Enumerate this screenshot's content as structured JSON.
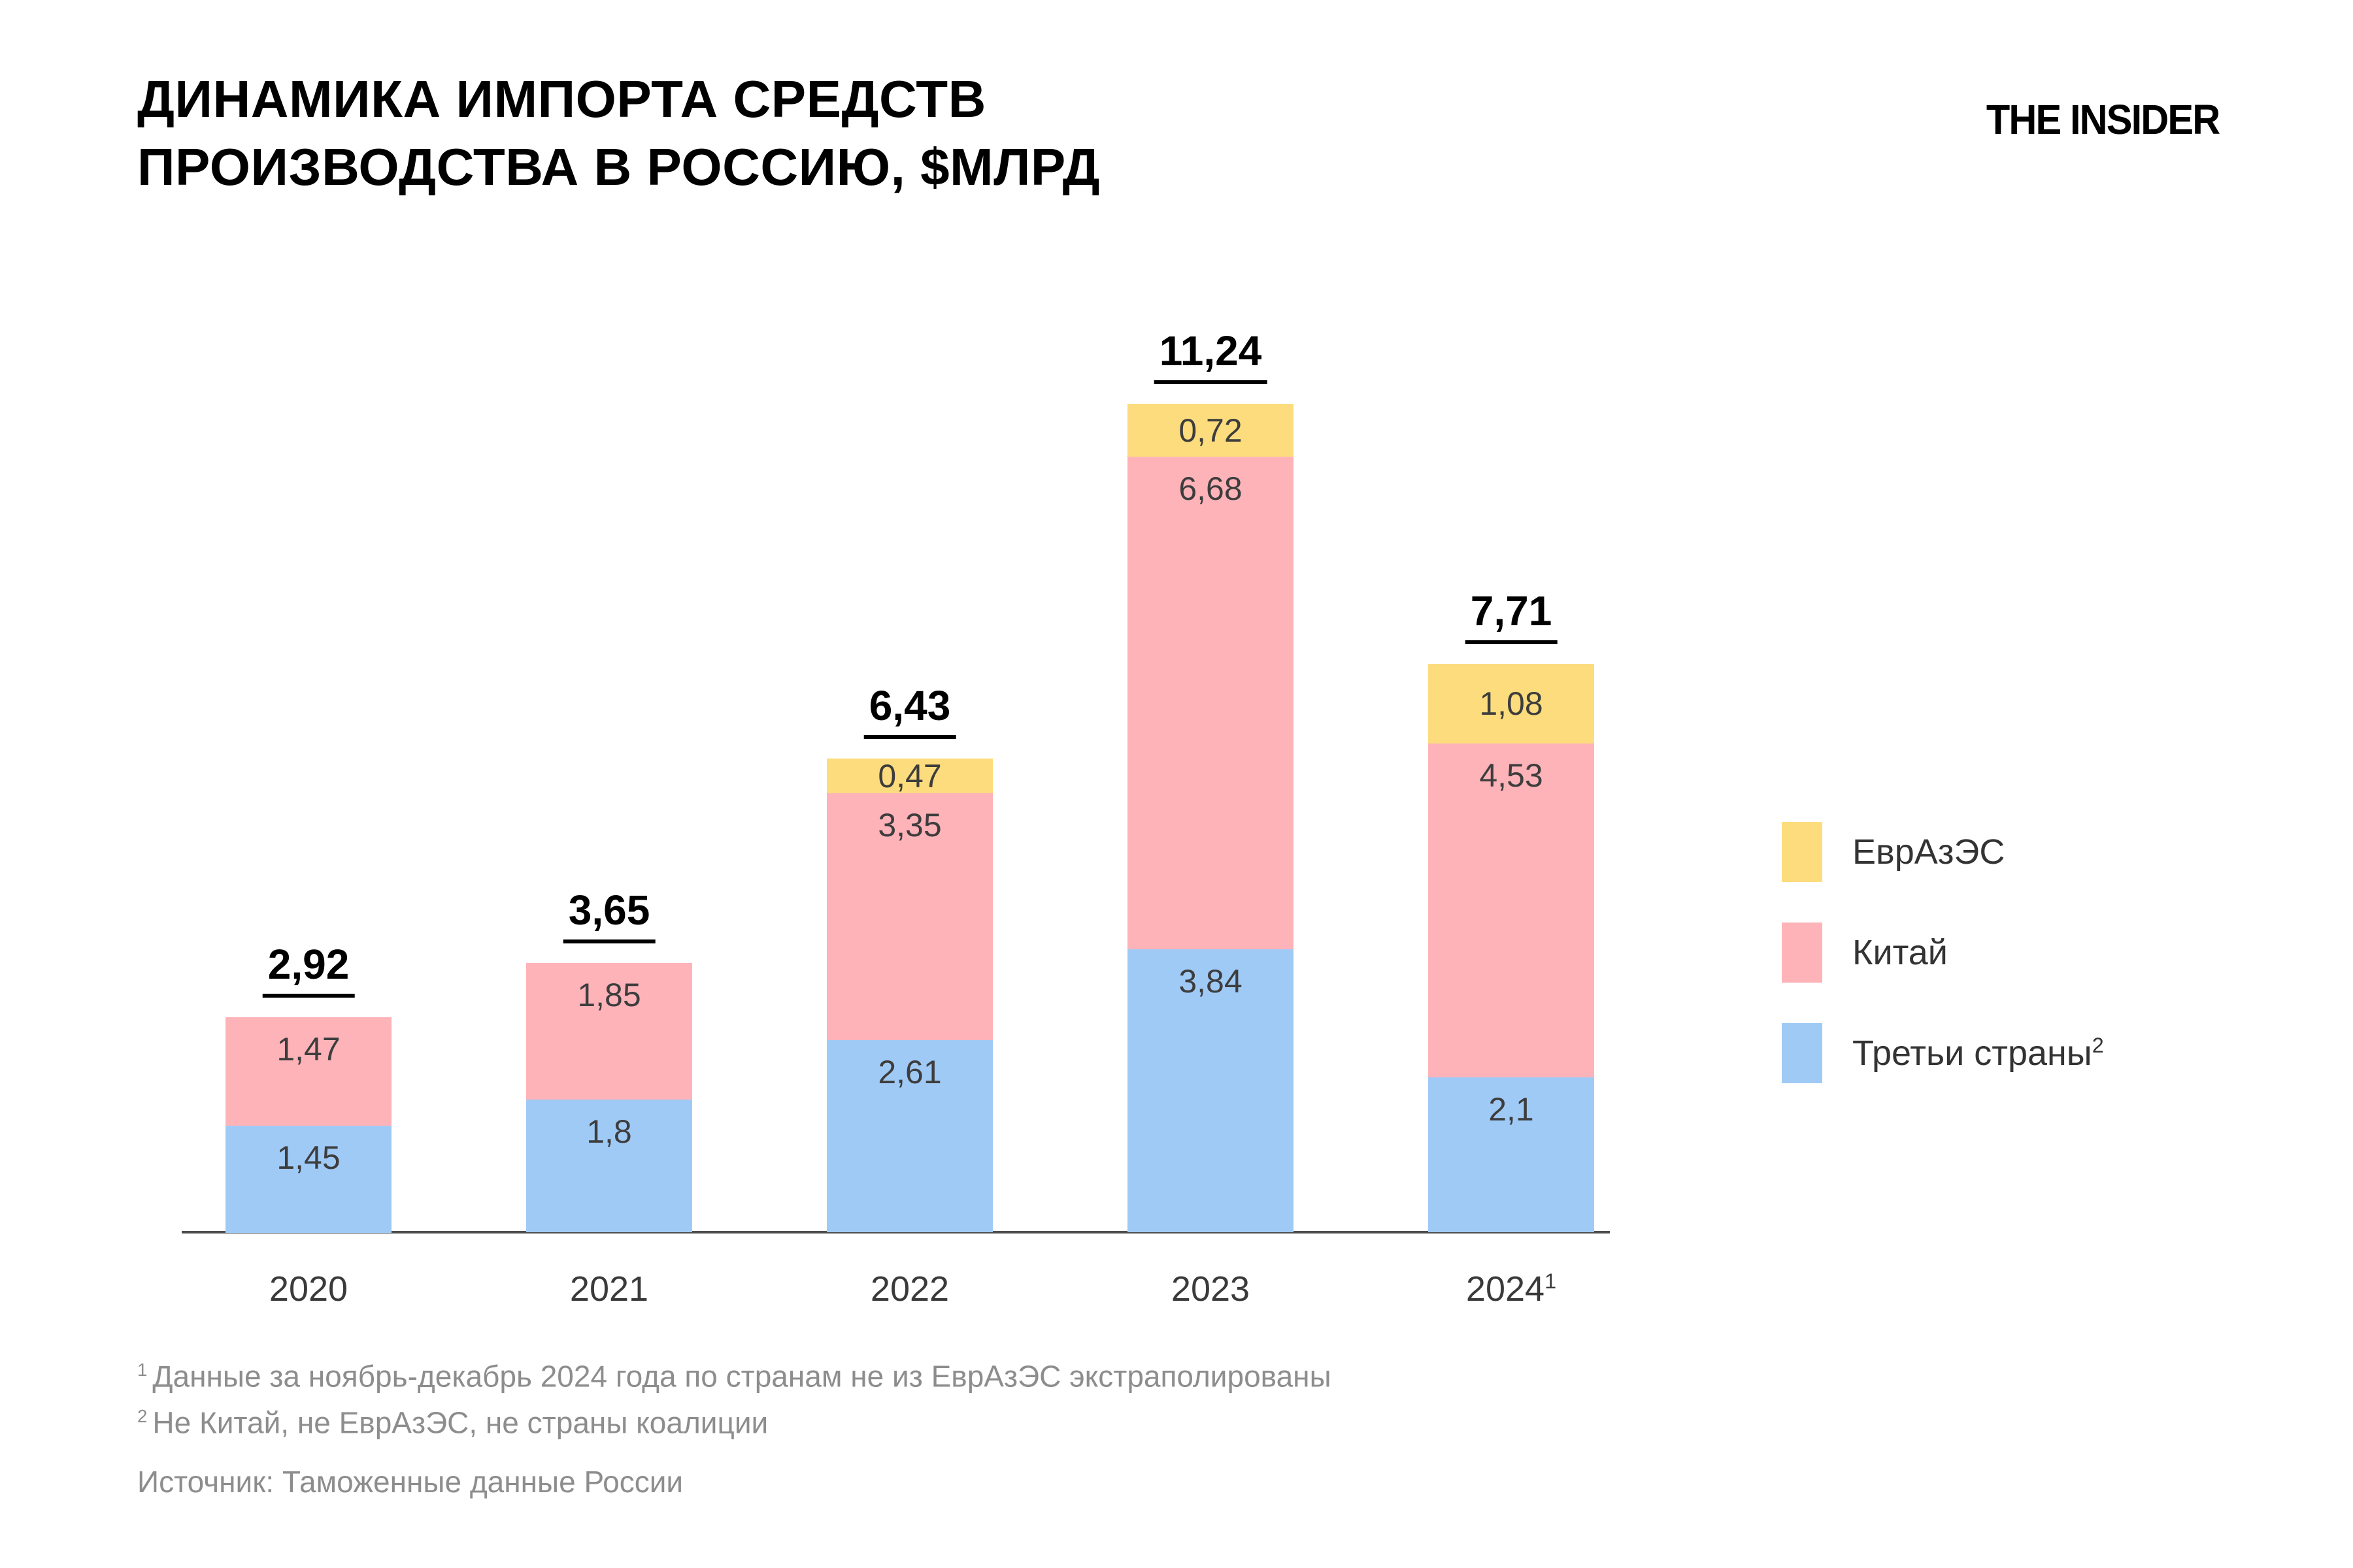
{
  "title": {
    "line1": "ДИНАМИКА ИМПОРТА СРЕДСТВ",
    "line2": "ПРОИЗВОДСТВА В РОССИЮ, $МЛРД"
  },
  "logo": "THE INSIDER",
  "chart_data": {
    "type": "bar",
    "stacked": true,
    "title": "Динамика импорта средств производства в Россию, $млрд",
    "unit": "$млрд",
    "grid": false,
    "legend_position": "right",
    "categories": [
      {
        "text": "2020",
        "sup": ""
      },
      {
        "text": "2021",
        "sup": ""
      },
      {
        "text": "2022",
        "sup": ""
      },
      {
        "text": "2023",
        "sup": ""
      },
      {
        "text": "2024",
        "sup": "1"
      }
    ],
    "series": [
      {
        "key": "third-countries",
        "name": "Третьи страны",
        "name_sup": "2",
        "color": "#A0CAF6",
        "values": [
          1.45,
          1.8,
          2.61,
          3.84,
          2.1
        ],
        "labels": [
          "1,45",
          "1,8",
          "2,61",
          "3,84",
          "2,1"
        ]
      },
      {
        "key": "china",
        "name": "Китай",
        "name_sup": "",
        "color": "#FEB3B9",
        "values": [
          1.47,
          1.85,
          3.35,
          6.68,
          4.53
        ],
        "labels": [
          "1,47",
          "1,85",
          "3,35",
          "6,68",
          "4,53"
        ]
      },
      {
        "key": "eaeu",
        "name": "ЕврАзЭС",
        "name_sup": "",
        "color": "#FCDC7D",
        "values": [
          0,
          0,
          0.47,
          0.72,
          1.08
        ],
        "labels": [
          "",
          "",
          "0,47",
          "0,72",
          "1,08"
        ]
      }
    ],
    "totals": [
      2.92,
      3.65,
      6.43,
      11.24,
      7.71
    ],
    "total_labels": [
      "2,92",
      "3,65",
      "6,43",
      "11,24",
      "7,71"
    ]
  },
  "legend": [
    {
      "key": "eaeu",
      "label": "ЕврАзЭС",
      "sup": "",
      "color": "#FCDC7D"
    },
    {
      "key": "china",
      "label": "Китай",
      "sup": "",
      "color": "#FEB3B9"
    },
    {
      "key": "third-countries",
      "label": "Третьи страны",
      "sup": "2",
      "color": "#A0CAF6"
    }
  ],
  "footnotes": [
    {
      "marker": "1",
      "text": "Данные за ноябрь-декабрь 2024 года по странам не из ЕврАзЭС экстраполированы"
    },
    {
      "marker": "2",
      "text": "Не Китай, не ЕврАзЭС, не страны коалиции"
    }
  ],
  "source": "Источник: Таможенные данные России",
  "colors": {
    "axis": "#4d4d4d",
    "value_label": "#3d3d3d",
    "footnote": "#8d8d8d"
  }
}
